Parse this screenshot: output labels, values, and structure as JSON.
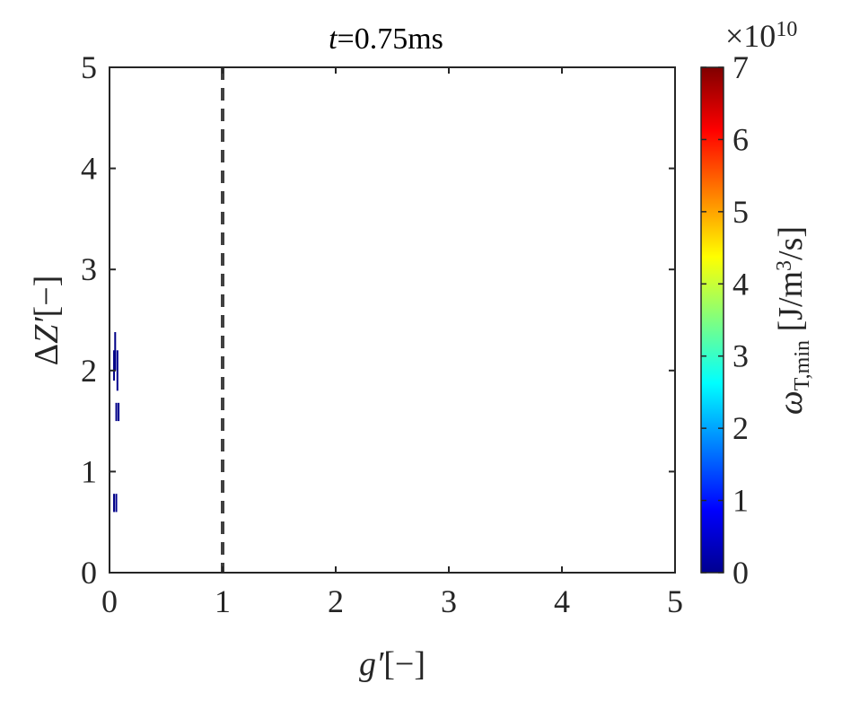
{
  "chart_data": {
    "type": "heatmap",
    "title": "t=0.75ms",
    "title_parts": {
      "var": "t",
      "rest": "=0.75ms"
    },
    "xlabel": "g′[−]",
    "xlabel_parts": {
      "var": "g′",
      "rest": "[−]"
    },
    "ylabel": "ΔZ′[−]",
    "ylabel_parts": {
      "pre": "Δ",
      "var": "Z′",
      "rest": "[−]"
    },
    "xlim": [
      0,
      5
    ],
    "ylim": [
      0,
      5
    ],
    "xticks": [
      "0",
      "1",
      "2",
      "3",
      "4",
      "5"
    ],
    "yticks": [
      "0",
      "1",
      "2",
      "3",
      "4",
      "5"
    ],
    "grid": false,
    "reference_line": {
      "x": 1,
      "style": "dashed",
      "color": "#404040"
    },
    "colorbar": {
      "label": "ωT,min [J/m3/s]",
      "label_parts": {
        "sym": "ω",
        "sub": "T,min",
        "bracket_open": " [J/m",
        "sup": "3",
        "bracket_close": "/s]"
      },
      "exponent_label": "×10",
      "exponent_power": "10",
      "ticks": [
        "0",
        "1",
        "2",
        "3",
        "4",
        "5",
        "6",
        "7"
      ],
      "range": [
        0,
        7
      ],
      "colormap": "jet"
    },
    "cells": [
      {
        "x": 0.05,
        "y0": 2.0,
        "y1": 2.38,
        "value": 0.05
      },
      {
        "x": 0.07,
        "y0": 1.8,
        "y1": 2.2,
        "value": 0.1
      },
      {
        "x": 0.04,
        "y0": 1.9,
        "y1": 2.2,
        "value": 0.05
      },
      {
        "x": 0.06,
        "y0": 1.5,
        "y1": 1.68,
        "value": 0.05
      },
      {
        "x": 0.08,
        "y0": 1.5,
        "y1": 1.68,
        "value": 0.1
      },
      {
        "x": 0.04,
        "y0": 0.6,
        "y1": 0.78,
        "value": 0.05
      },
      {
        "x": 0.06,
        "y0": 0.6,
        "y1": 0.78,
        "value": 0.1
      }
    ]
  }
}
